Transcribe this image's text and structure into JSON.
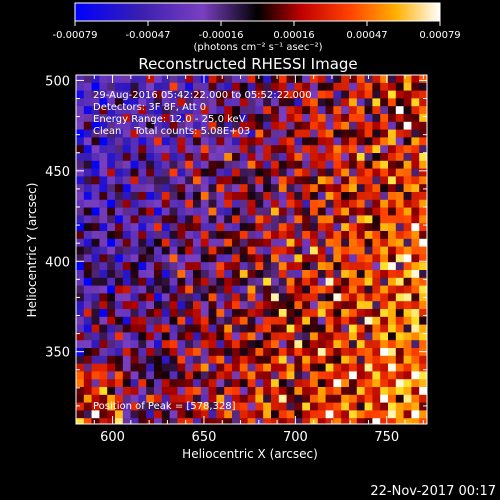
{
  "chart_data": {
    "type": "heatmap",
    "title": "Reconstructed RHESSI Image",
    "xlabel": "Heliocentric X (arcsec)",
    "ylabel": "Heliocentric Y (arcsec)",
    "xlim": [
      580,
      772
    ],
    "ylim": [
      310,
      503
    ],
    "x_ticks": [
      600,
      650,
      700,
      750
    ],
    "y_ticks": [
      350,
      400,
      450,
      500
    ],
    "colorbar": {
      "range": [
        -0.00079,
        0.00079
      ],
      "ticks": [
        "-0.00079",
        "-0.00047",
        "-0.00016",
        "0.00016",
        "0.00047",
        "0.00079"
      ],
      "unit_label": "(photons cm⁻² s⁻¹ asec⁻²)"
    },
    "annotations": [
      "29-Aug-2016 05:42:22.000 to 05:52:22.000",
      "Detectors: 3F 8F, Att 0",
      "Energy Range: 12.0 - 25.0 keV",
      "Clean    Total counts: 5.08E+03"
    ],
    "peak_label": "Position of Peak = [578,328]",
    "peak_position": [
      578,
      328
    ],
    "grid": false
  },
  "footer": {
    "timestamp": "22-Nov-2017 00:17"
  },
  "colors": {
    "background": "#000000",
    "text": "#ffffff",
    "colormap": [
      "#0000ff",
      "#4a2ea8",
      "#7a3fc0",
      "#000000",
      "#b00000",
      "#ff2a00",
      "#ff8c00",
      "#ffe000",
      "#ffffff"
    ]
  }
}
